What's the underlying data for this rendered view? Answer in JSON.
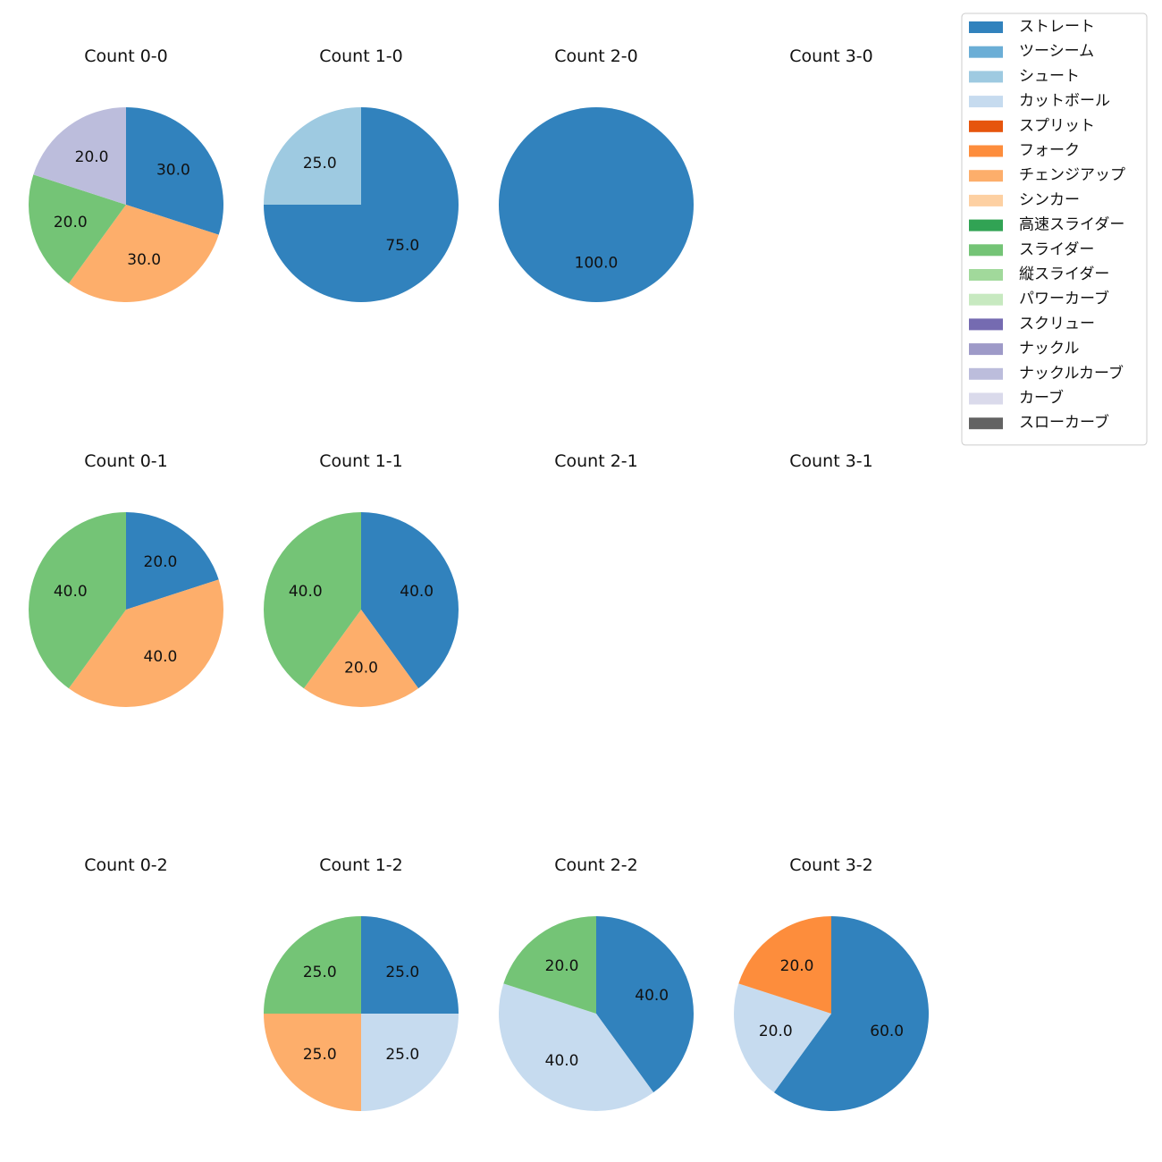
{
  "legend": [
    {
      "label": "ストレート",
      "color": "#3182bd"
    },
    {
      "label": "ツーシーム",
      "color": "#6baed6"
    },
    {
      "label": "シュート",
      "color": "#9ecae1"
    },
    {
      "label": "カットボール",
      "color": "#c6dbef"
    },
    {
      "label": "スプリット",
      "color": "#e6550d"
    },
    {
      "label": "フォーク",
      "color": "#fd8d3c"
    },
    {
      "label": "チェンジアップ",
      "color": "#fdae6b"
    },
    {
      "label": "シンカー",
      "color": "#fdd0a2"
    },
    {
      "label": "高速スライダー",
      "color": "#31a354"
    },
    {
      "label": "スライダー",
      "color": "#74c476"
    },
    {
      "label": "縦スライダー",
      "color": "#a1d99b"
    },
    {
      "label": "パワーカーブ",
      "color": "#c7e9c0"
    },
    {
      "label": "スクリュー",
      "color": "#756bb1"
    },
    {
      "label": "ナックル",
      "color": "#9e9ac8"
    },
    {
      "label": "ナックルカーブ",
      "color": "#bcbddc"
    },
    {
      "label": "カーブ",
      "color": "#dadaeb"
    },
    {
      "label": "スローカーブ",
      "color": "#636363"
    }
  ],
  "chart_data": [
    {
      "type": "pie",
      "title": "Count 0-0",
      "slices": [
        {
          "label": "ストレート",
          "value": 30.0,
          "text": "30.0"
        },
        {
          "label": "チェンジアップ",
          "value": 30.0,
          "text": "30.0"
        },
        {
          "label": "スライダー",
          "value": 20.0,
          "text": "20.0"
        },
        {
          "label": "ナックルカーブ",
          "value": 20.0,
          "text": "20.0"
        }
      ]
    },
    {
      "type": "pie",
      "title": "Count 1-0",
      "slices": [
        {
          "label": "ストレート",
          "value": 75.0,
          "text": "75.0"
        },
        {
          "label": "シュート",
          "value": 25.0,
          "text": "25.0"
        }
      ]
    },
    {
      "type": "pie",
      "title": "Count 2-0",
      "slices": [
        {
          "label": "ストレート",
          "value": 100.0,
          "text": "100.0"
        }
      ]
    },
    {
      "type": "pie",
      "title": "Count 3-0",
      "slices": []
    },
    {
      "type": "pie",
      "title": "Count 0-1",
      "slices": [
        {
          "label": "ストレート",
          "value": 20.0,
          "text": "20.0"
        },
        {
          "label": "チェンジアップ",
          "value": 40.0,
          "text": "40.0"
        },
        {
          "label": "スライダー",
          "value": 40.0,
          "text": "40.0"
        }
      ]
    },
    {
      "type": "pie",
      "title": "Count 1-1",
      "slices": [
        {
          "label": "ストレート",
          "value": 40.0,
          "text": "40.0"
        },
        {
          "label": "チェンジアップ",
          "value": 20.0,
          "text": "20.0"
        },
        {
          "label": "スライダー",
          "value": 40.0,
          "text": "40.0"
        }
      ]
    },
    {
      "type": "pie",
      "title": "Count 2-1",
      "slices": []
    },
    {
      "type": "pie",
      "title": "Count 3-1",
      "slices": []
    },
    {
      "type": "pie",
      "title": "Count 0-2",
      "slices": []
    },
    {
      "type": "pie",
      "title": "Count 1-2",
      "slices": [
        {
          "label": "ストレート",
          "value": 25.0,
          "text": "25.0"
        },
        {
          "label": "カットボール",
          "value": 25.0,
          "text": "25.0"
        },
        {
          "label": "チェンジアップ",
          "value": 25.0,
          "text": "25.0"
        },
        {
          "label": "スライダー",
          "value": 25.0,
          "text": "25.0"
        }
      ]
    },
    {
      "type": "pie",
      "title": "Count 2-2",
      "slices": [
        {
          "label": "ストレート",
          "value": 40.0,
          "text": "40.0"
        },
        {
          "label": "カットボール",
          "value": 40.0,
          "text": "40.0"
        },
        {
          "label": "スライダー",
          "value": 20.0,
          "text": "20.0"
        }
      ]
    },
    {
      "type": "pie",
      "title": "Count 3-2",
      "slices": [
        {
          "label": "ストレート",
          "value": 60.0,
          "text": "60.0"
        },
        {
          "label": "カットボール",
          "value": 20.0,
          "text": "20.0"
        },
        {
          "label": "フォーク",
          "value": 20.0,
          "text": "20.0"
        }
      ]
    }
  ]
}
